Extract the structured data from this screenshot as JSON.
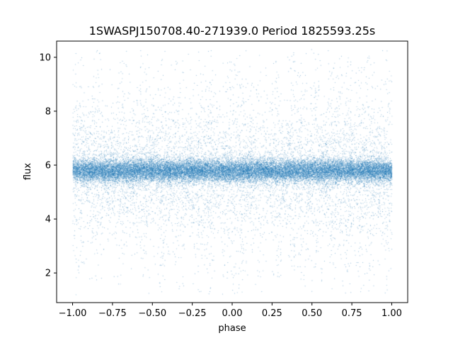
{
  "chart_data": {
    "type": "scatter",
    "title": "1SWASPJ150708.40-271939.0 Period 1825593.25s",
    "xlabel": "phase",
    "ylabel": "flux",
    "xlim": [
      -1.1,
      1.1
    ],
    "ylim": [
      0.9,
      10.6
    ],
    "x_ticks": [
      -1.0,
      -0.75,
      -0.5,
      -0.25,
      0.0,
      0.25,
      0.5,
      0.75,
      1.0
    ],
    "x_tick_labels": [
      "−1.00",
      "−0.75",
      "−0.50",
      "−0.25",
      "0.00",
      "0.25",
      "0.50",
      "0.75",
      "1.00"
    ],
    "y_ticks": [
      2,
      4,
      6,
      8,
      10
    ],
    "y_tick_labels": [
      "2",
      "4",
      "6",
      "8",
      "10"
    ],
    "series_color": "#1f77b4",
    "grid": false,
    "legend": "none",
    "x_range": [
      -1.0,
      1.0
    ],
    "flux_median": 5.8,
    "flux_core_range": [
      5.1,
      6.5
    ],
    "flux_full_range": [
      1.2,
      10.3
    ],
    "point_count_estimate": 30000,
    "excursion_phases": [
      -0.99,
      -0.96,
      -0.85,
      -0.69,
      -0.55,
      -0.44,
      -0.33,
      -0.2,
      -0.14,
      -0.03,
      0.02,
      0.06,
      0.17,
      0.28,
      0.38,
      0.44,
      0.52,
      0.63,
      0.67,
      0.72,
      0.8,
      0.86,
      0.97,
      0.99
    ]
  }
}
